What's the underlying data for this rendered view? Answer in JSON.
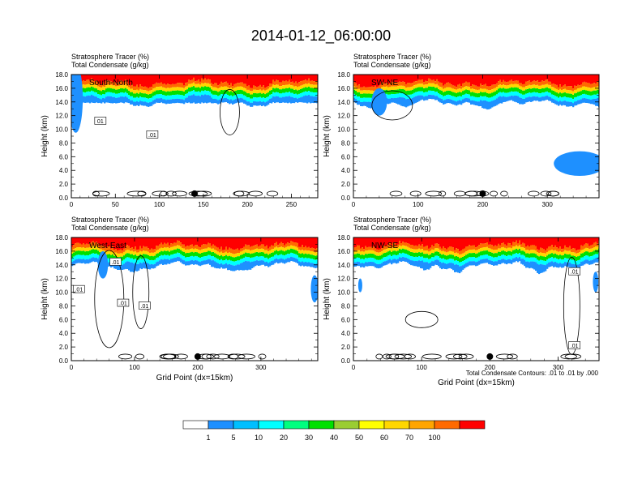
{
  "figure": {
    "title": "2014-01-12_06:00:00",
    "contour_note": "Total Condensate Contours: .01 to .01 by .000"
  },
  "colors": {
    "levels": [
      "#ffffff",
      "#1e90ff",
      "#00bfff",
      "#00ffff",
      "#00ff7f",
      "#00e000",
      "#9acd32",
      "#ffff00",
      "#ffd700",
      "#ffa500",
      "#ff6a00",
      "#ff0000"
    ]
  },
  "colorbar": {
    "labels": [
      "1",
      "5",
      "10",
      "20",
      "30",
      "40",
      "50",
      "60",
      "70",
      "100"
    ]
  },
  "chart_data": [
    {
      "type": "heatmap",
      "panel": "top-left",
      "header_line1": "Stratosphere Tracer   (%)",
      "header_line2": "Total Condensate   (g/kg)",
      "label": "South-North",
      "ylabel": "Height (km)",
      "xlabel": "",
      "xlim": [
        0,
        280
      ],
      "ylim": [
        0,
        18
      ],
      "xticks": [
        0,
        50,
        100,
        150,
        200,
        250
      ],
      "yticks": [
        "0.0",
        "2.0",
        "4.0",
        "6.0",
        "8.0",
        "10.0",
        "12.0",
        "14.0",
        "16.0",
        "18.0"
      ],
      "marker_x": 140,
      "contour_labels": [
        {
          "x": 33,
          "y": 11.2,
          "t": "01"
        },
        {
          "x": 92,
          "y": 9.2,
          "t": ".01"
        }
      ]
    },
    {
      "type": "heatmap",
      "panel": "top-right",
      "header_line1": "Stratosphere Tracer   (%)",
      "header_line2": "Total Condensate   (g/kg)",
      "label": "SW-NE",
      "ylabel": "Height (km)",
      "xlabel": "",
      "xlim": [
        0,
        380
      ],
      "ylim": [
        0,
        18
      ],
      "xticks": [
        0,
        100,
        200,
        300
      ],
      "yticks": [
        "0.0",
        "2.0",
        "4.0",
        "6.0",
        "8.0",
        "10.0",
        "12.0",
        "14.0",
        "16.0",
        "18.0"
      ],
      "marker_x": 200,
      "contour_labels": []
    },
    {
      "type": "heatmap",
      "panel": "bottom-left",
      "header_line1": "Stratosphere Tracer   (%)",
      "header_line2": "Total Condensate   (g/kg)",
      "label": "West-East",
      "ylabel": "Height (km)",
      "xlabel": "Grid Point (dx=15km)",
      "xlim": [
        0,
        390
      ],
      "ylim": [
        0,
        18
      ],
      "xticks": [
        0,
        100,
        200,
        300
      ],
      "yticks": [
        "0.0",
        "2.0",
        "4.0",
        "6.0",
        "8.0",
        "10.0",
        "12.0",
        "14.0",
        "16.0",
        "18.0"
      ],
      "marker_x": 200,
      "contour_labels": [
        {
          "x": 70,
          "y": 14.4,
          "t": ".01"
        },
        {
          "x": 12,
          "y": 10.4,
          "t": ".01"
        },
        {
          "x": 82,
          "y": 8.4,
          "t": ".01"
        },
        {
          "x": 116,
          "y": 8.0,
          "t": ".01"
        }
      ]
    },
    {
      "type": "heatmap",
      "panel": "bottom-right",
      "header_line1": "Stratosphere Tracer   (%)",
      "header_line2": "Total Condensate   (g/kg)",
      "label": "NW-SE",
      "ylabel": "Height (km)",
      "xlabel": "Grid Point (dx=15km)",
      "xlim": [
        0,
        360
      ],
      "ylim": [
        0,
        18
      ],
      "xticks": [
        0,
        100,
        200,
        300
      ],
      "yticks": [
        "0.0",
        "2.0",
        "4.0",
        "6.0",
        "8.0",
        "10.0",
        "12.0",
        "14.0",
        "16.0",
        "18.0"
      ],
      "marker_x": 200,
      "contour_labels": [
        {
          "x": 324,
          "y": 13.0,
          "t": ".01"
        },
        {
          "x": 324,
          "y": 2.2,
          "t": ".01"
        }
      ]
    }
  ]
}
